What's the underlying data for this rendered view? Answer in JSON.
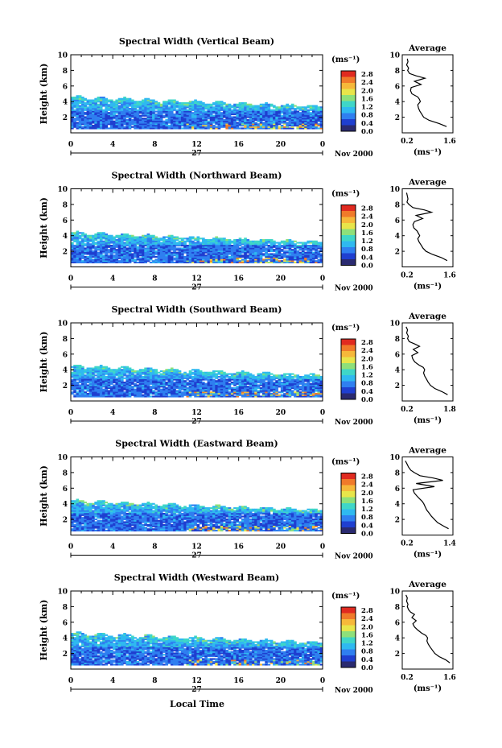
{
  "figure": {
    "xlabel": "Local Time",
    "panel_titles": [
      "Spectral Width (Vertical Beam)",
      "Spectral Width (Northward Beam)",
      "Spectral Width (Southward Beam)",
      "Spectral Width (Eastward Beam)",
      "Spectral Width (Westward Beam)"
    ]
  },
  "colorbar": {
    "unit_label": "(ms⁻¹)",
    "tick_labels": [
      "2.8",
      "2.4",
      "2.0",
      "1.6",
      "1.2",
      "0.8",
      "0.4",
      "0.0"
    ],
    "colors": [
      "#2a2a70",
      "#1f3fd0",
      "#2f7ff0",
      "#2fb9f0",
      "#3fd6c8",
      "#8ee07a",
      "#e8e54a",
      "#f6b83a",
      "#f07a2a",
      "#e02a20"
    ]
  },
  "chart_data": [
    {
      "type": "heatmap",
      "title": "Spectral Width (Vertical Beam)",
      "ylabel": "Height (km)",
      "ylim": [
        0,
        10
      ],
      "y_ticks": [
        2,
        4,
        6,
        8,
        10
      ],
      "xlim": [
        0,
        24
      ],
      "x_ticks": [
        "0",
        "4",
        "8",
        "12",
        "16",
        "20",
        "0"
      ],
      "date_label": "27",
      "month_label": "Nov 2000",
      "colorbar_range": [
        0.0,
        2.8
      ],
      "data_top_km": 4.5,
      "notes_values": {
        "typical_low": 0.6,
        "hot_spots_near_surface": 2.8
      },
      "average_profile": {
        "title": "Average",
        "xlabel": "(ms⁻¹)",
        "x_ticks": [
          "0.2",
          "1.6"
        ],
        "xlim": [
          0.2,
          1.6
        ],
        "ylim": [
          0,
          10
        ],
        "y_ticks": [
          2,
          4,
          6,
          8,
          10
        ],
        "width": [
          0.28,
          0.3,
          0.26,
          0.32,
          0.29,
          0.35,
          0.55,
          0.82,
          0.5,
          0.7,
          0.4,
          0.38,
          0.42,
          0.6,
          0.65,
          0.68,
          0.6,
          0.62,
          0.66,
          0.72,
          0.78,
          0.95,
          1.25,
          1.48
        ],
        "height_km": [
          9.5,
          9.1,
          8.7,
          8.3,
          8.0,
          7.6,
          7.3,
          7.0,
          6.6,
          6.2,
          5.8,
          5.4,
          5.0,
          4.6,
          4.3,
          4.0,
          3.6,
          3.2,
          2.8,
          2.4,
          2.0,
          1.6,
          1.2,
          0.8
        ]
      }
    },
    {
      "type": "heatmap",
      "title": "Spectral Width (Northward Beam)",
      "ylabel": "Height (km)",
      "ylim": [
        0,
        10
      ],
      "y_ticks": [
        2,
        4,
        6,
        8,
        10
      ],
      "xlim": [
        0,
        24
      ],
      "x_ticks": [
        "0",
        "4",
        "8",
        "12",
        "16",
        "20",
        "0"
      ],
      "date_label": "27",
      "month_label": "Nov 2000",
      "colorbar_range": [
        0.0,
        2.8
      ],
      "data_top_km": 4.3,
      "notes_values": {
        "typical_low": 0.6,
        "hot_spots_near_surface": 2.8
      },
      "average_profile": {
        "title": "Average",
        "xlabel": "(ms⁻¹)",
        "x_ticks": [
          "0.2",
          "1.6"
        ],
        "xlim": [
          0.2,
          1.6
        ],
        "ylim": [
          0,
          10
        ],
        "y_ticks": [
          2,
          4,
          6,
          8,
          10
        ],
        "width": [
          0.26,
          0.28,
          0.3,
          0.27,
          0.33,
          0.45,
          0.8,
          1.02,
          0.55,
          0.75,
          0.5,
          0.45,
          0.48,
          0.58,
          0.62,
          0.66,
          0.6,
          0.64,
          0.7,
          0.76,
          0.85,
          1.05,
          1.32,
          1.5
        ],
        "height_km": [
          9.5,
          9.1,
          8.7,
          8.3,
          8.0,
          7.6,
          7.3,
          7.0,
          6.6,
          6.2,
          5.8,
          5.4,
          5.0,
          4.6,
          4.3,
          4.0,
          3.6,
          3.2,
          2.8,
          2.4,
          2.0,
          1.6,
          1.2,
          0.8
        ]
      }
    },
    {
      "type": "heatmap",
      "title": "Spectral Width (Southward Beam)",
      "ylabel": "Height (km)",
      "ylim": [
        0,
        10
      ],
      "y_ticks": [
        2,
        4,
        6,
        8,
        10
      ],
      "xlim": [
        0,
        24
      ],
      "x_ticks": [
        "0",
        "4",
        "8",
        "12",
        "16",
        "20",
        "0"
      ],
      "date_label": "27",
      "month_label": "Nov 2000",
      "colorbar_range": [
        0.0,
        2.8
      ],
      "data_top_km": 4.4,
      "notes_values": {
        "typical_low": 0.6,
        "hot_spots_near_surface": 2.8
      },
      "average_profile": {
        "title": "Average",
        "xlabel": "(ms⁻¹)",
        "x_ticks": [
          "0.2",
          "1.8"
        ],
        "xlim": [
          0.2,
          1.8
        ],
        "ylim": [
          0,
          10
        ],
        "y_ticks": [
          2,
          4,
          6,
          8,
          10
        ],
        "width": [
          0.25,
          0.3,
          0.27,
          0.33,
          0.3,
          0.36,
          0.55,
          0.72,
          0.5,
          0.66,
          0.45,
          0.48,
          0.55,
          0.7,
          0.85,
          0.9,
          0.86,
          0.9,
          0.96,
          1.02,
          1.1,
          1.25,
          1.5,
          1.7
        ],
        "height_km": [
          9.5,
          9.1,
          8.7,
          8.3,
          8.0,
          7.6,
          7.3,
          7.0,
          6.6,
          6.2,
          5.8,
          5.4,
          5.0,
          4.6,
          4.3,
          4.0,
          3.6,
          3.2,
          2.8,
          2.4,
          2.0,
          1.6,
          1.2,
          0.8
        ]
      }
    },
    {
      "type": "heatmap",
      "title": "Spectral Width (Eastward Beam)",
      "ylabel": "Height (km)",
      "ylim": [
        0,
        10
      ],
      "y_ticks": [
        2,
        4,
        6,
        8,
        10
      ],
      "xlim": [
        0,
        24
      ],
      "x_ticks": [
        "0",
        "4",
        "8",
        "12",
        "16",
        "20",
        "0"
      ],
      "date_label": "27",
      "month_label": "Nov 2000",
      "colorbar_range": [
        0.0,
        2.8
      ],
      "data_top_km": 4.3,
      "notes_values": {
        "typical_low": 0.6,
        "hot_spots_near_surface": 2.8
      },
      "average_profile": {
        "title": "Average",
        "xlabel": "(ms⁻¹)",
        "x_ticks": [
          "0.2",
          "1.4"
        ],
        "xlim": [
          0.2,
          1.4
        ],
        "ylim": [
          0,
          10
        ],
        "y_ticks": [
          2,
          4,
          6,
          8,
          10
        ],
        "width": [
          0.22,
          0.26,
          0.3,
          0.36,
          0.45,
          0.6,
          0.95,
          1.2,
          0.5,
          0.98,
          0.42,
          0.45,
          0.52,
          0.6,
          0.66,
          0.7,
          0.74,
          0.78,
          0.84,
          0.9,
          0.98,
          1.06,
          1.2,
          1.35
        ],
        "height_km": [
          9.5,
          9.1,
          8.7,
          8.3,
          8.0,
          7.6,
          7.3,
          7.0,
          6.6,
          6.2,
          5.8,
          5.4,
          5.0,
          4.6,
          4.3,
          4.0,
          3.6,
          3.2,
          2.8,
          2.4,
          2.0,
          1.6,
          1.2,
          0.8
        ]
      }
    },
    {
      "type": "heatmap",
      "title": "Spectral Width (Westward Beam)",
      "ylabel": "Height (km)",
      "ylim": [
        0,
        10
      ],
      "y_ticks": [
        2,
        4,
        6,
        8,
        10
      ],
      "xlim": [
        0,
        24
      ],
      "x_ticks": [
        "0",
        "4",
        "8",
        "12",
        "16",
        "20",
        "0"
      ],
      "date_label": "27",
      "month_label": "Nov 2000",
      "colorbar_range": [
        0.0,
        2.8
      ],
      "data_top_km": 4.5,
      "notes_values": {
        "typical_low": 0.6,
        "hot_spots_near_surface": 2.8
      },
      "average_profile": {
        "title": "Average",
        "xlabel": "(ms⁻¹)",
        "x_ticks": [
          "0.2",
          "1.6"
        ],
        "xlim": [
          0.2,
          1.6
        ],
        "ylim": [
          0,
          10
        ],
        "y_ticks": [
          2,
          4,
          6,
          8,
          10
        ],
        "width": [
          0.24,
          0.28,
          0.26,
          0.3,
          0.28,
          0.32,
          0.38,
          0.5,
          0.42,
          0.55,
          0.45,
          0.5,
          0.6,
          0.72,
          0.85,
          0.9,
          0.88,
          0.92,
          0.98,
          1.05,
          1.12,
          1.25,
          1.45,
          1.58
        ],
        "height_km": [
          9.5,
          9.1,
          8.7,
          8.3,
          8.0,
          7.6,
          7.3,
          7.0,
          6.6,
          6.2,
          5.8,
          5.4,
          5.0,
          4.6,
          4.3,
          4.0,
          3.6,
          3.2,
          2.8,
          2.4,
          2.0,
          1.6,
          1.2,
          0.8
        ]
      }
    }
  ]
}
